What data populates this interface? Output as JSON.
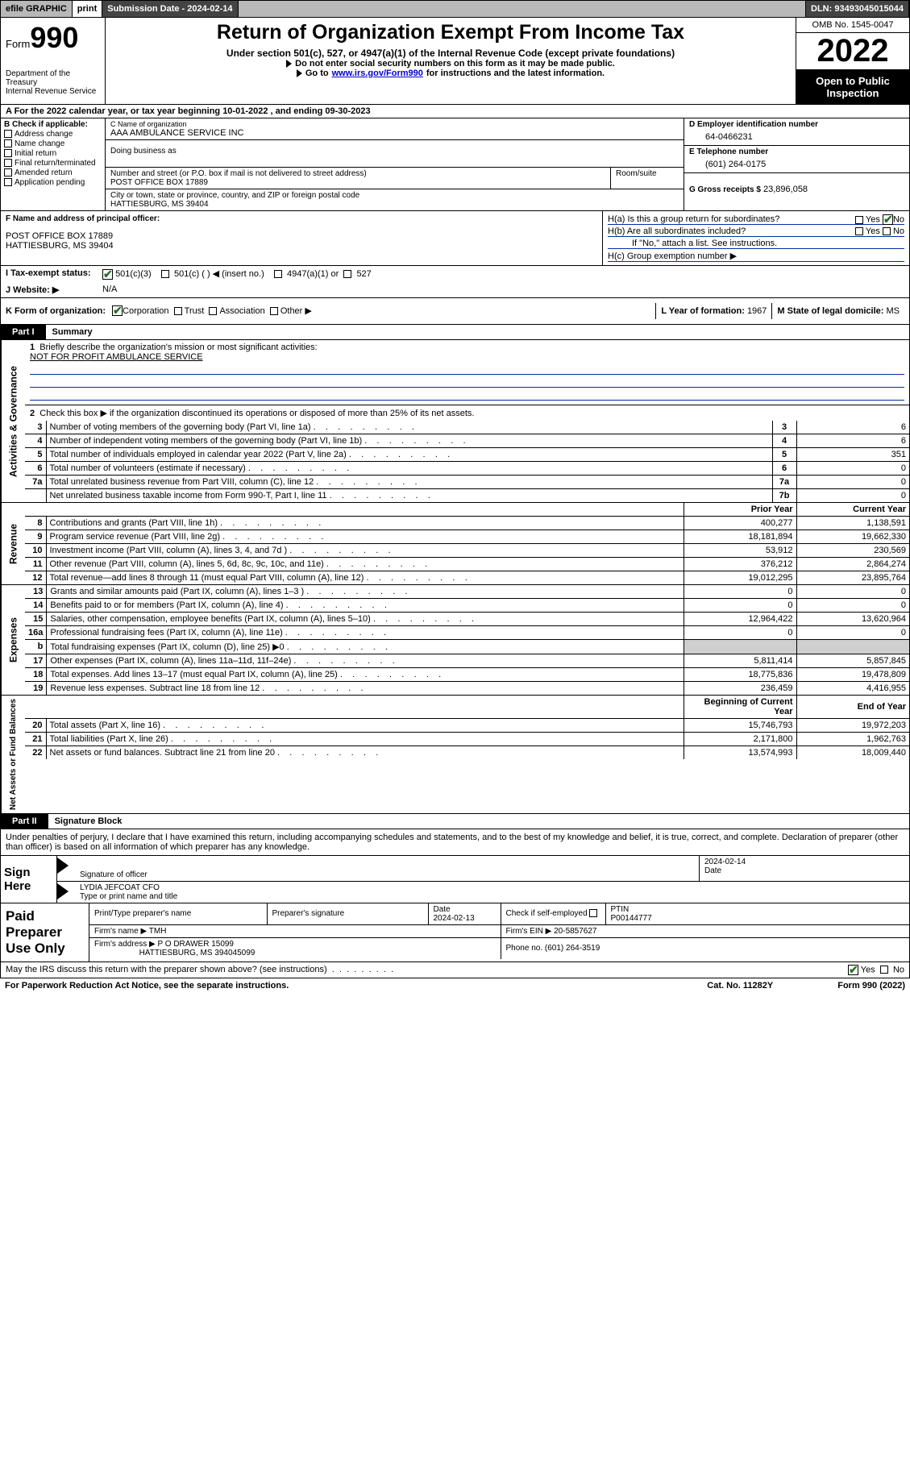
{
  "topbar": {
    "efile": "efile GRAPHIC",
    "print": "print",
    "submission": "Submission Date - 2024-02-14",
    "dln": "DLN: 93493045015044"
  },
  "header": {
    "form_word": "Form",
    "form_num": "990",
    "title": "Return of Organization Exempt From Income Tax",
    "sub1": "Under section 501(c), 527, or 4947(a)(1) of the Internal Revenue Code (except private foundations)",
    "sub2": "Do not enter social security numbers on this form as it may be made public.",
    "sub3_pre": "Go to ",
    "sub3_link": "www.irs.gov/Form990",
    "sub3_post": " for instructions and the latest information.",
    "dept": "Department of the Treasury\nInternal Revenue Service",
    "omb": "OMB No. 1545-0047",
    "year": "2022",
    "open": "Open to Public Inspection"
  },
  "rowA": "A For the 2022 calendar year, or tax year beginning 10-01-2022   , and ending 09-30-2023",
  "colB": {
    "title": "B Check if applicable:",
    "items": [
      "Address change",
      "Name change",
      "Initial return",
      "Final return/terminated",
      "Amended return",
      "Application pending"
    ]
  },
  "colC": {
    "name_cap": "C Name of organization",
    "name": "AAA AMBULANCE SERVICE INC",
    "dba_cap": "Doing business as",
    "addr_cap": "Number and street (or P.O. box if mail is not delivered to street address)",
    "addr": "POST OFFICE BOX 17889",
    "room_cap": "Room/suite",
    "city_cap": "City or town, state or province, country, and ZIP or foreign postal code",
    "city": "HATTIESBURG, MS  39404"
  },
  "colD": {
    "ein_cap": "D Employer identification number",
    "ein": "64-0466231",
    "tel_cap": "E Telephone number",
    "tel": "(601) 264-0175",
    "gross_cap": "G Gross receipts $",
    "gross": "23,896,058"
  },
  "rowF": {
    "cap": "F Name and address of principal officer:",
    "l1": "POST OFFICE BOX 17889",
    "l2": "HATTIESBURG, MS  39404"
  },
  "rowH": {
    "ha": "H(a)  Is this a group return for subordinates?",
    "hb": "H(b)  Are all subordinates included?",
    "hb2": "If \"No,\" attach a list. See instructions.",
    "hc": "H(c)  Group exemption number ▶",
    "yes": "Yes",
    "no": "No"
  },
  "rowI": {
    "lab": "I   Tax-exempt status:",
    "o1": "501(c)(3)",
    "o2": "501(c) (  ) ◀ (insert no.)",
    "o3": "4947(a)(1) or",
    "o4": "527"
  },
  "rowJ": {
    "lab": "J   Website: ▶",
    "val": "N/A"
  },
  "rowK": {
    "lab": "K Form of organization:",
    "o1": "Corporation",
    "o2": "Trust",
    "o3": "Association",
    "o4": "Other ▶"
  },
  "rowL": {
    "lab": "L Year of formation: ",
    "val": "1967"
  },
  "rowM": {
    "lab": "M State of legal domicile: ",
    "val": "MS"
  },
  "part1": {
    "tab": "Part I",
    "title": "Summary"
  },
  "summary": {
    "sideA": "Activities & Governance",
    "sideR": "Revenue",
    "sideE": "Expenses",
    "sideN": "Net Assets or Fund Balances",
    "l1": "Briefly describe the organization's mission or most significant activities:",
    "l1v": "NOT FOR PROFIT AMBULANCE SERVICE",
    "l2": "Check this box ▶        if the organization discontinued its operations or disposed of more than 25% of its net assets.",
    "rows": [
      {
        "n": "3",
        "d": "Number of voting members of the governing body (Part VI, line 1a)",
        "b": "3",
        "v": "6"
      },
      {
        "n": "4",
        "d": "Number of independent voting members of the governing body (Part VI, line 1b)",
        "b": "4",
        "v": "6"
      },
      {
        "n": "5",
        "d": "Total number of individuals employed in calendar year 2022 (Part V, line 2a)",
        "b": "5",
        "v": "351"
      },
      {
        "n": "6",
        "d": "Total number of volunteers (estimate if necessary)",
        "b": "6",
        "v": "0"
      },
      {
        "n": "7a",
        "d": "Total unrelated business revenue from Part VIII, column (C), line 12",
        "b": "7a",
        "v": "0"
      },
      {
        "n": "",
        "d": "Net unrelated business taxable income from Form 990-T, Part I, line 11",
        "b": "7b",
        "v": "0"
      }
    ],
    "col_prior": "Prior Year",
    "col_curr": "Current Year",
    "rev": [
      {
        "n": "8",
        "d": "Contributions and grants (Part VIII, line 1h)",
        "p": "400,277",
        "c": "1,138,591"
      },
      {
        "n": "9",
        "d": "Program service revenue (Part VIII, line 2g)",
        "p": "18,181,894",
        "c": "19,662,330"
      },
      {
        "n": "10",
        "d": "Investment income (Part VIII, column (A), lines 3, 4, and 7d )",
        "p": "53,912",
        "c": "230,569"
      },
      {
        "n": "11",
        "d": "Other revenue (Part VIII, column (A), lines 5, 6d, 8c, 9c, 10c, and 11e)",
        "p": "376,212",
        "c": "2,864,274"
      },
      {
        "n": "12",
        "d": "Total revenue—add lines 8 through 11 (must equal Part VIII, column (A), line 12)",
        "p": "19,012,295",
        "c": "23,895,764"
      }
    ],
    "exp": [
      {
        "n": "13",
        "d": "Grants and similar amounts paid (Part IX, column (A), lines 1–3 )",
        "p": "0",
        "c": "0"
      },
      {
        "n": "14",
        "d": "Benefits paid to or for members (Part IX, column (A), line 4)",
        "p": "0",
        "c": "0"
      },
      {
        "n": "15",
        "d": "Salaries, other compensation, employee benefits (Part IX, column (A), lines 5–10)",
        "p": "12,964,422",
        "c": "13,620,964"
      },
      {
        "n": "16a",
        "d": "Professional fundraising fees (Part IX, column (A), line 11e)",
        "p": "0",
        "c": "0"
      },
      {
        "n": "b",
        "d": "Total fundraising expenses (Part IX, column (D), line 25) ▶0",
        "p": "",
        "c": "",
        "grey": true
      },
      {
        "n": "17",
        "d": "Other expenses (Part IX, column (A), lines 11a–11d, 11f–24e)",
        "p": "5,811,414",
        "c": "5,857,845"
      },
      {
        "n": "18",
        "d": "Total expenses. Add lines 13–17 (must equal Part IX, column (A), line 25)",
        "p": "18,775,836",
        "c": "19,478,809"
      },
      {
        "n": "19",
        "d": "Revenue less expenses. Subtract line 18 from line 12",
        "p": "236,459",
        "c": "4,416,955"
      }
    ],
    "col_beg": "Beginning of Current Year",
    "col_end": "End of Year",
    "net": [
      {
        "n": "20",
        "d": "Total assets (Part X, line 16)",
        "p": "15,746,793",
        "c": "19,972,203"
      },
      {
        "n": "21",
        "d": "Total liabilities (Part X, line 26)",
        "p": "2,171,800",
        "c": "1,962,763"
      },
      {
        "n": "22",
        "d": "Net assets or fund balances. Subtract line 21 from line 20",
        "p": "13,574,993",
        "c": "18,009,440"
      }
    ]
  },
  "part2": {
    "tab": "Part II",
    "title": "Signature Block"
  },
  "sig": {
    "decl": "Under penalties of perjury, I declare that I have examined this return, including accompanying schedules and statements, and to the best of my knowledge and belief, it is true, correct, and complete. Declaration of preparer (other than officer) is based on all information of which preparer has any knowledge.",
    "sign_here": "Sign Here",
    "sig_of": "Signature of officer",
    "date_lab": "Date",
    "date": "2024-02-14",
    "name": "LYDIA JEFCOAT CFO",
    "name_cap": "Type or print name and title"
  },
  "prep": {
    "title": "Paid Preparer Use Only",
    "h1": "Print/Type preparer's name",
    "h2": "Preparer's signature",
    "h3": "Date",
    "h3v": "2024-02-13",
    "h4": "Check        if self-employed",
    "h5": "PTIN",
    "h5v": "P00144777",
    "firm_lab": "Firm's name    ▶",
    "firm": "TMH",
    "ein_lab": "Firm's EIN ▶",
    "ein": "20-5857627",
    "addr_lab": "Firm's address ▶",
    "addr1": "P O DRAWER 15099",
    "addr2": "HATTIESBURG, MS  394045099",
    "phone_lab": "Phone no.",
    "phone": "(601) 264-3519"
  },
  "foot": {
    "q": "May the IRS discuss this return with the preparer shown above? (see instructions)",
    "yes": "Yes",
    "no": "No",
    "pra": "For Paperwork Reduction Act Notice, see the separate instructions.",
    "cat": "Cat. No. 11282Y",
    "form": "Form 990 (2022)"
  }
}
